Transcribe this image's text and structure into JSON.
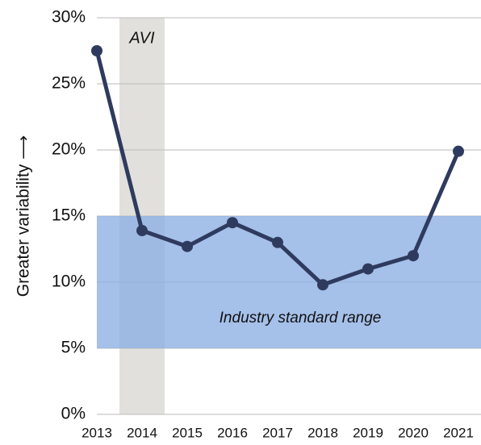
{
  "chart_data": {
    "type": "line",
    "y_label": "Greater variability ⟶",
    "x": [
      2013,
      2014,
      2015,
      2016,
      2017,
      2018,
      2019,
      2020,
      2021
    ],
    "xlim": [
      2013,
      2021.5
    ],
    "xticks": [
      2013,
      2014,
      2015,
      2016,
      2017,
      2018,
      2019,
      2020,
      2021
    ],
    "series": [
      {
        "name": "Variability",
        "color": "#2f3b5e",
        "values": [
          27.5,
          13.9,
          12.7,
          14.5,
          13.0,
          9.8,
          11.0,
          12.0,
          19.9
        ]
      }
    ],
    "ylim": [
      0,
      30
    ],
    "yticks": [
      {
        "value": 0,
        "label": "0%"
      },
      {
        "value": 5,
        "label": "5%"
      },
      {
        "value": 10,
        "label": "10%"
      },
      {
        "value": 15,
        "label": "15%"
      },
      {
        "value": 20,
        "label": "20%"
      },
      {
        "value": 25,
        "label": "25%"
      },
      {
        "value": 30,
        "label": "30%"
      }
    ],
    "grid": true,
    "x_band": {
      "label": "AVI",
      "x": [
        2013.5,
        2014.5
      ],
      "color": "#e2e0dd"
    },
    "y_band": {
      "label": "Industry standard range",
      "y": [
        5,
        15
      ],
      "color": "#8eb0e4"
    }
  }
}
